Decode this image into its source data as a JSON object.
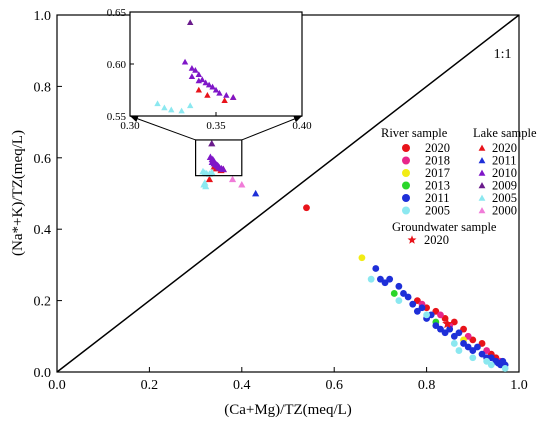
{
  "chart_data": {
    "type": "scatter",
    "title": "",
    "xlabel": "(Ca+Mg)/TZ(meq/L)",
    "ylabel": "(Na*+K)/TZ(meq/L)",
    "xlim": [
      0.0,
      1.0
    ],
    "ylim": [
      0.0,
      1.0
    ],
    "x_ticks": [
      "0.0",
      "0.2",
      "0.4",
      "0.6",
      "0.8",
      "1.0"
    ],
    "y_ticks": [
      "0.0",
      "0.2",
      "0.4",
      "0.6",
      "0.8",
      "1.0"
    ],
    "grid": false,
    "reference_line": {
      "label": "1:1",
      "x": [
        0.0,
        1.0
      ],
      "y": [
        0.0,
        1.0
      ]
    },
    "legend": {
      "placement": "right",
      "river_header": "River sample",
      "lake_header": "Lake sample",
      "groundwater_header": "Groundwater sample"
    },
    "series": [
      {
        "name": "2020",
        "group": "river",
        "marker": "circle",
        "color": "#e8131a",
        "points": [
          [
            0.54,
            0.46
          ],
          [
            0.78,
            0.2
          ],
          [
            0.8,
            0.18
          ],
          [
            0.82,
            0.17
          ],
          [
            0.84,
            0.15
          ],
          [
            0.86,
            0.14
          ],
          [
            0.88,
            0.12
          ],
          [
            0.9,
            0.09
          ],
          [
            0.92,
            0.08
          ],
          [
            0.94,
            0.05
          ],
          [
            0.95,
            0.04
          ]
        ]
      },
      {
        "name": "2018",
        "group": "river",
        "marker": "circle",
        "color": "#e8268a",
        "points": [
          [
            0.79,
            0.19
          ],
          [
            0.83,
            0.16
          ],
          [
            0.85,
            0.13
          ],
          [
            0.89,
            0.1
          ],
          [
            0.93,
            0.06
          ],
          [
            0.96,
            0.03
          ]
        ]
      },
      {
        "name": "2017",
        "group": "river",
        "marker": "circle",
        "color": "#f2ec14",
        "points": [
          [
            0.66,
            0.32
          ],
          [
            0.88,
            0.09
          ]
        ]
      },
      {
        "name": "2013",
        "group": "river",
        "marker": "circle",
        "color": "#2ad62a",
        "points": [
          [
            0.73,
            0.22
          ],
          [
            0.82,
            0.14
          ]
        ]
      },
      {
        "name": "2011",
        "group": "river",
        "marker": "circle",
        "color": "#1e2fd8",
        "points": [
          [
            0.69,
            0.29
          ],
          [
            0.7,
            0.26
          ],
          [
            0.71,
            0.25
          ],
          [
            0.72,
            0.26
          ],
          [
            0.74,
            0.24
          ],
          [
            0.75,
            0.22
          ],
          [
            0.76,
            0.21
          ],
          [
            0.77,
            0.19
          ],
          [
            0.78,
            0.17
          ],
          [
            0.79,
            0.18
          ],
          [
            0.8,
            0.15
          ],
          [
            0.81,
            0.16
          ],
          [
            0.82,
            0.13
          ],
          [
            0.83,
            0.12
          ],
          [
            0.84,
            0.11
          ],
          [
            0.85,
            0.12
          ],
          [
            0.86,
            0.1
          ],
          [
            0.87,
            0.11
          ],
          [
            0.88,
            0.08
          ],
          [
            0.89,
            0.07
          ],
          [
            0.9,
            0.06
          ],
          [
            0.91,
            0.07
          ],
          [
            0.92,
            0.05
          ],
          [
            0.93,
            0.04
          ],
          [
            0.94,
            0.04
          ],
          [
            0.95,
            0.03
          ],
          [
            0.96,
            0.02
          ],
          [
            0.97,
            0.02
          ],
          [
            0.955,
            0.025
          ],
          [
            0.965,
            0.03
          ]
        ]
      },
      {
        "name": "2005",
        "group": "river",
        "marker": "circle",
        "color": "#8be8f0",
        "points": [
          [
            0.68,
            0.26
          ],
          [
            0.74,
            0.2
          ],
          [
            0.8,
            0.16
          ],
          [
            0.86,
            0.08
          ],
          [
            0.87,
            0.06
          ],
          [
            0.9,
            0.04
          ],
          [
            0.93,
            0.03
          ],
          [
            0.94,
            0.02
          ],
          [
            0.97,
            0.01
          ]
        ]
      },
      {
        "name": "2020",
        "group": "lake",
        "marker": "triangle",
        "color": "#e8131a",
        "points": [
          [
            0.33,
            0.54
          ],
          [
            0.34,
            0.575
          ],
          [
            0.345,
            0.57
          ],
          [
            0.355,
            0.565
          ],
          [
            0.36,
            0.568
          ]
        ]
      },
      {
        "name": "2011",
        "group": "lake",
        "marker": "triangle",
        "color": "#1e2fd8",
        "points": [
          [
            0.43,
            0.5
          ]
        ]
      },
      {
        "name": "2010",
        "group": "lake",
        "marker": "triangle",
        "color": "#7f16c8",
        "points": [
          [
            0.332,
            0.602
          ],
          [
            0.336,
            0.596
          ],
          [
            0.338,
            0.594
          ],
          [
            0.34,
            0.59
          ],
          [
            0.342,
            0.585
          ],
          [
            0.344,
            0.582
          ],
          [
            0.346,
            0.58
          ],
          [
            0.348,
            0.578
          ],
          [
            0.35,
            0.575
          ],
          [
            0.352,
            0.572
          ],
          [
            0.356,
            0.57
          ],
          [
            0.36,
            0.568
          ],
          [
            0.336,
            0.588
          ],
          [
            0.34,
            0.584
          ]
        ]
      },
      {
        "name": "2009",
        "group": "lake",
        "marker": "triangle",
        "color": "#6a1b8c",
        "points": [
          [
            0.335,
            0.64
          ]
        ]
      },
      {
        "name": "2005",
        "group": "lake",
        "marker": "triangle",
        "color": "#8be8f0",
        "points": [
          [
            0.316,
            0.562
          ],
          [
            0.32,
            0.558
          ],
          [
            0.324,
            0.556
          ],
          [
            0.33,
            0.555
          ],
          [
            0.335,
            0.56
          ],
          [
            0.32,
            0.53
          ],
          [
            0.318,
            0.525
          ],
          [
            0.322,
            0.52
          ]
        ]
      },
      {
        "name": "2000",
        "group": "lake",
        "marker": "triangle",
        "color": "#f07cd8",
        "points": [
          [
            0.4,
            0.525
          ],
          [
            0.38,
            0.54
          ]
        ]
      },
      {
        "name": "2020",
        "group": "groundwater",
        "marker": "star",
        "color": "#e8131a",
        "points": [
          [
            0.845,
            0.135
          ]
        ]
      }
    ],
    "inset": {
      "xlim": [
        0.3,
        0.4
      ],
      "ylim": [
        0.55,
        0.65
      ],
      "x_ticks": [
        "0.30",
        "0.35",
        "0.40"
      ],
      "y_ticks": [
        "0.55",
        "0.60",
        "0.65"
      ],
      "zoom_region": {
        "x": [
          0.3,
          0.4
        ],
        "y": [
          0.55,
          0.65
        ]
      }
    }
  }
}
